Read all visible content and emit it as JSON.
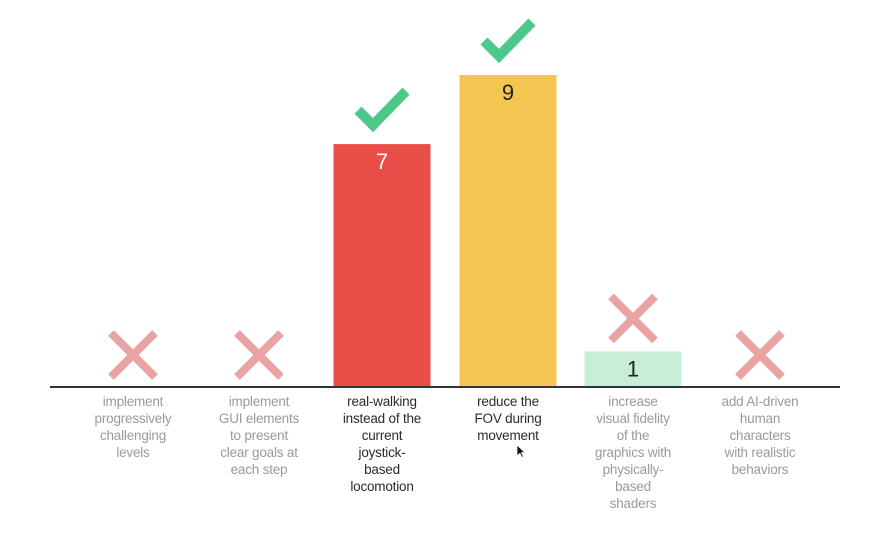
{
  "chart_data": {
    "type": "bar",
    "categories": [
      "implement progressively challenging levels",
      "implement GUI elements to present clear goals at each step",
      "real-walking instead of the current joystick-based locomotion",
      "reduce the FOV during movement",
      "increase visual fidelity of the graphics with physically-based shaders",
      "add AI-driven human characters with realistic behaviors"
    ],
    "category_lines": [
      [
        "implement",
        "progressively",
        "challenging",
        "levels"
      ],
      [
        "implement",
        "GUI elements",
        "to present",
        "clear goals at",
        "each step"
      ],
      [
        "real-walking",
        "instead of the",
        "current",
        "joystick-",
        "based",
        "locomotion"
      ],
      [
        "reduce the",
        "FOV during",
        "movement"
      ],
      [
        "increase",
        "visual fidelity",
        "of the",
        "graphics with",
        "physically-",
        "based",
        "shaders"
      ],
      [
        "add AI-driven",
        "human",
        "characters",
        "with realistic",
        "behaviors"
      ]
    ],
    "values": [
      0,
      0,
      7,
      9,
      1,
      0
    ],
    "value_labels": [
      "",
      "",
      "7",
      "9",
      "1",
      ""
    ],
    "marks": [
      "cross",
      "cross",
      "check",
      "check",
      "cross",
      "cross"
    ],
    "selected": [
      false,
      false,
      true,
      true,
      false,
      false
    ],
    "ylim": [
      0,
      9
    ],
    "grid": false,
    "legend": "none",
    "colors": {
      "bars": [
        "#e9e9e9",
        "#e9e9e9",
        "#e84d47",
        "#f5c552",
        "#c8eed8",
        "#e9e9e9"
      ],
      "value_text": [
        "#333333",
        "#333333",
        "#ffffff",
        "#222222",
        "#222222",
        "#333333"
      ],
      "check": "#4cc98a",
      "cross": "#e9a3a3",
      "baseline": "#333333",
      "label": "#9a9a9a",
      "label_selected": "#2b2b2b"
    }
  }
}
